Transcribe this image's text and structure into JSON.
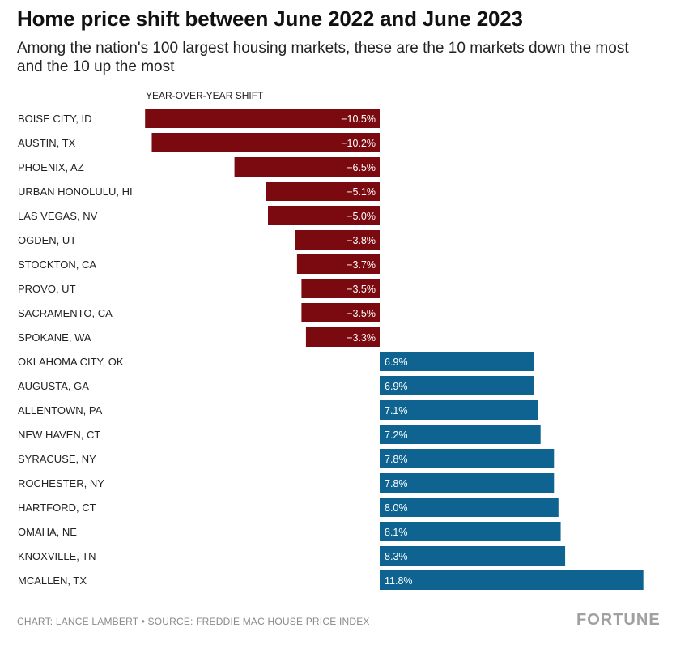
{
  "header": {
    "title": "Home price shift between June 2022 and June 2023",
    "subtitle": "Among the nation's 100 largest housing markets, these are the 10 markets down the most and the 10 up the most"
  },
  "footer": {
    "credit": "CHART: LANCE LAMBERT • SOURCE: FREDDIE MAC HOUSE PRICE INDEX",
    "logo": "FORTUNE"
  },
  "colors": {
    "negative": "#7a0a10",
    "positive": "#0f6391"
  },
  "chart_data": {
    "type": "bar",
    "orientation": "horizontal",
    "title": "Home price shift between June 2022 and June 2023",
    "xlabel": "YEAR-OVER-YEAR SHIFT",
    "ylabel": "",
    "xlim": [
      -10.5,
      11.8
    ],
    "unit": "%",
    "categories": [
      "BOISE CITY, ID",
      "AUSTIN, TX",
      "PHOENIX, AZ",
      "URBAN HONOLULU, HI",
      "LAS VEGAS, NV",
      "OGDEN, UT",
      "STOCKTON, CA",
      "PROVO, UT",
      "SACRAMENTO, CA",
      "SPOKANE, WA",
      "OKLAHOMA CITY, OK",
      "AUGUSTA, GA",
      "ALLENTOWN, PA",
      "NEW HAVEN, CT",
      "SYRACUSE, NY",
      "ROCHESTER, NY",
      "HARTFORD, CT",
      "OMAHA, NE",
      "KNOXVILLE, TN",
      "MCALLEN, TX"
    ],
    "values": [
      -10.5,
      -10.2,
      -6.5,
      -5.1,
      -5.0,
      -3.8,
      -3.7,
      -3.5,
      -3.5,
      -3.3,
      6.9,
      6.9,
      7.1,
      7.2,
      7.8,
      7.8,
      8.0,
      8.1,
      8.3,
      11.8
    ],
    "labels": [
      "−10.5%",
      "−10.2%",
      "−6.5%",
      "−5.1%",
      "−5.0%",
      "−3.8%",
      "−3.7%",
      "−3.5%",
      "−3.5%",
      "−3.3%",
      "6.9%",
      "6.9%",
      "7.1%",
      "7.2%",
      "7.8%",
      "7.8%",
      "8.0%",
      "8.1%",
      "8.3%",
      "11.8%"
    ]
  }
}
